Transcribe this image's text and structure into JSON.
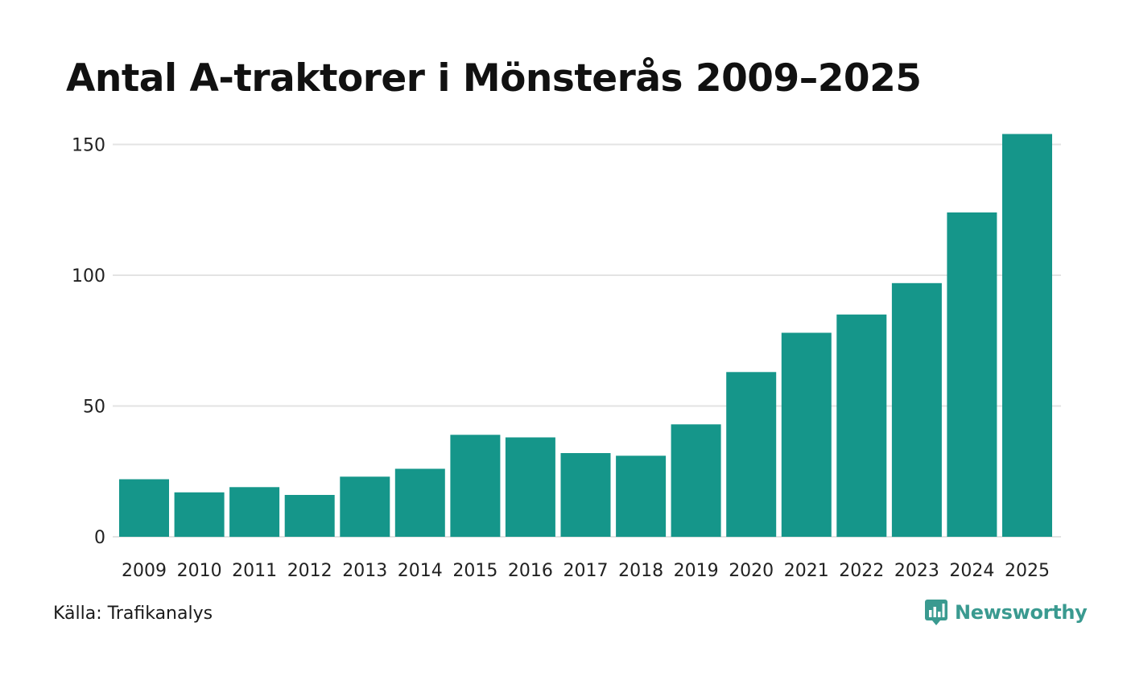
{
  "chart_data": {
    "type": "bar",
    "title": "Antal A-traktorer i Mönsterås 2009–2025",
    "xlabel": "",
    "ylabel": "",
    "categories": [
      "2009",
      "2010",
      "2011",
      "2012",
      "2013",
      "2014",
      "2015",
      "2016",
      "2017",
      "2018",
      "2019",
      "2020",
      "2021",
      "2022",
      "2023",
      "2024",
      "2025"
    ],
    "values": [
      22,
      17,
      19,
      16,
      23,
      26,
      39,
      38,
      32,
      31,
      43,
      63,
      78,
      85,
      97,
      124,
      154
    ],
    "ylim": [
      0,
      160
    ],
    "yticks": [
      "0",
      "50",
      "100",
      "150"
    ],
    "grid": true,
    "bar_color": "#15968a",
    "grid_color": "#e3e3e3"
  },
  "footer": {
    "source": "Källa: Trafikanalys",
    "brand": "Newsworthy",
    "brand_color": "#3a9a90"
  }
}
